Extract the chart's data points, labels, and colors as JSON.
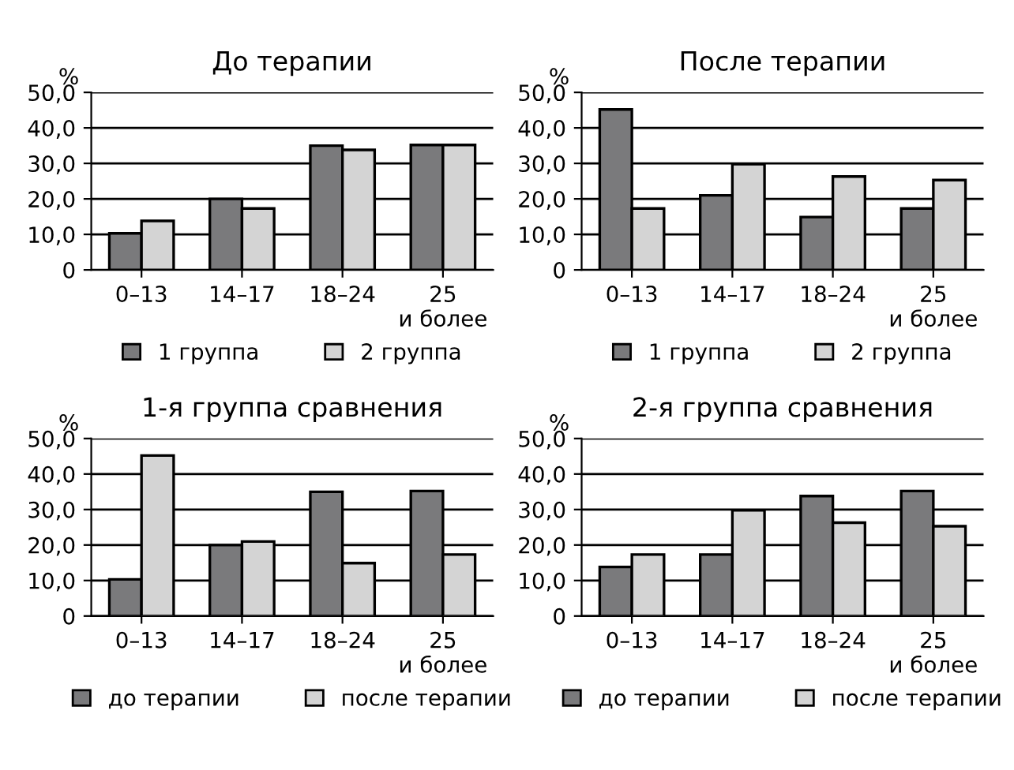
{
  "chart_data": [
    {
      "type": "bar",
      "title": "До терапии",
      "ylabel": "%",
      "categories": [
        "0–13",
        "14–17",
        "18–24",
        "25\nи более"
      ],
      "ylim": [
        0,
        50
      ],
      "yticks": [
        0,
        {
          "value": 10,
          "label": "10,0"
        },
        {
          "value": 20,
          "label": "20,0"
        },
        {
          "value": 30,
          "label": "30,0"
        },
        {
          "value": 40,
          "label": "40,0"
        },
        {
          "value": 50,
          "label": "50,0"
        }
      ],
      "grid": "y",
      "legend": "bottom",
      "series": [
        {
          "name": "1 группа",
          "color": "#7a7a7c",
          "values": [
            10.3,
            20,
            35,
            35.2
          ]
        },
        {
          "name": "2 группа",
          "color": "#d4d4d4",
          "values": [
            13.8,
            17.3,
            33.8,
            35.2
          ]
        }
      ]
    },
    {
      "type": "bar",
      "title": "После терапии",
      "ylabel": "%",
      "categories": [
        "0–13",
        "14–17",
        "18–24",
        "25\nи более"
      ],
      "ylim": [
        0,
        50
      ],
      "yticks": [
        0,
        {
          "value": 10,
          "label": "10,0"
        },
        {
          "value": 20,
          "label": "20,0"
        },
        {
          "value": 30,
          "label": "30,0"
        },
        {
          "value": 40,
          "label": "40,0"
        },
        {
          "value": 50,
          "label": "50,0"
        }
      ],
      "grid": "y",
      "legend": "bottom",
      "series": [
        {
          "name": "1 группа",
          "color": "#7a7a7c",
          "values": [
            45.2,
            21,
            14.9,
            17.3
          ]
        },
        {
          "name": "2 группа",
          "color": "#d4d4d4",
          "values": [
            17.3,
            29.8,
            26.3,
            25.3
          ]
        }
      ]
    },
    {
      "type": "bar",
      "title": "1-я группа сравнения",
      "ylabel": "%",
      "categories": [
        "0–13",
        "14–17",
        "18–24",
        "25\nи более"
      ],
      "ylim": [
        0,
        50
      ],
      "yticks": [
        0,
        {
          "value": 10,
          "label": "10,0"
        },
        {
          "value": 20,
          "label": "20,0"
        },
        {
          "value": 30,
          "label": "30,0"
        },
        {
          "value": 40,
          "label": "40,0"
        },
        {
          "value": 50,
          "label": "50,0"
        }
      ],
      "grid": "y",
      "legend": "bottom",
      "series": [
        {
          "name": "до терапии",
          "color": "#7a7a7c",
          "values": [
            10.3,
            20,
            35,
            35.2
          ]
        },
        {
          "name": "после терапии",
          "color": "#d4d4d4",
          "values": [
            45.2,
            21,
            14.9,
            17.3
          ]
        }
      ]
    },
    {
      "type": "bar",
      "title": "2-я группа сравнения",
      "ylabel": "%",
      "categories": [
        "0–13",
        "14–17",
        "18–24",
        "25\nи более"
      ],
      "ylim": [
        0,
        50
      ],
      "yticks": [
        0,
        {
          "value": 10,
          "label": "10,0"
        },
        {
          "value": 20,
          "label": "20,0"
        },
        {
          "value": 30,
          "label": "30,0"
        },
        {
          "value": 40,
          "label": "40,0"
        },
        {
          "value": 50,
          "label": "50,0"
        }
      ],
      "grid": "y",
      "legend": "bottom",
      "series": [
        {
          "name": "до терапии",
          "color": "#7a7a7c",
          "values": [
            13.8,
            17.3,
            33.8,
            35.2
          ]
        },
        {
          "name": "после терапии",
          "color": "#d4d4d4",
          "values": [
            17.3,
            29.8,
            26.3,
            25.3
          ]
        }
      ]
    }
  ]
}
